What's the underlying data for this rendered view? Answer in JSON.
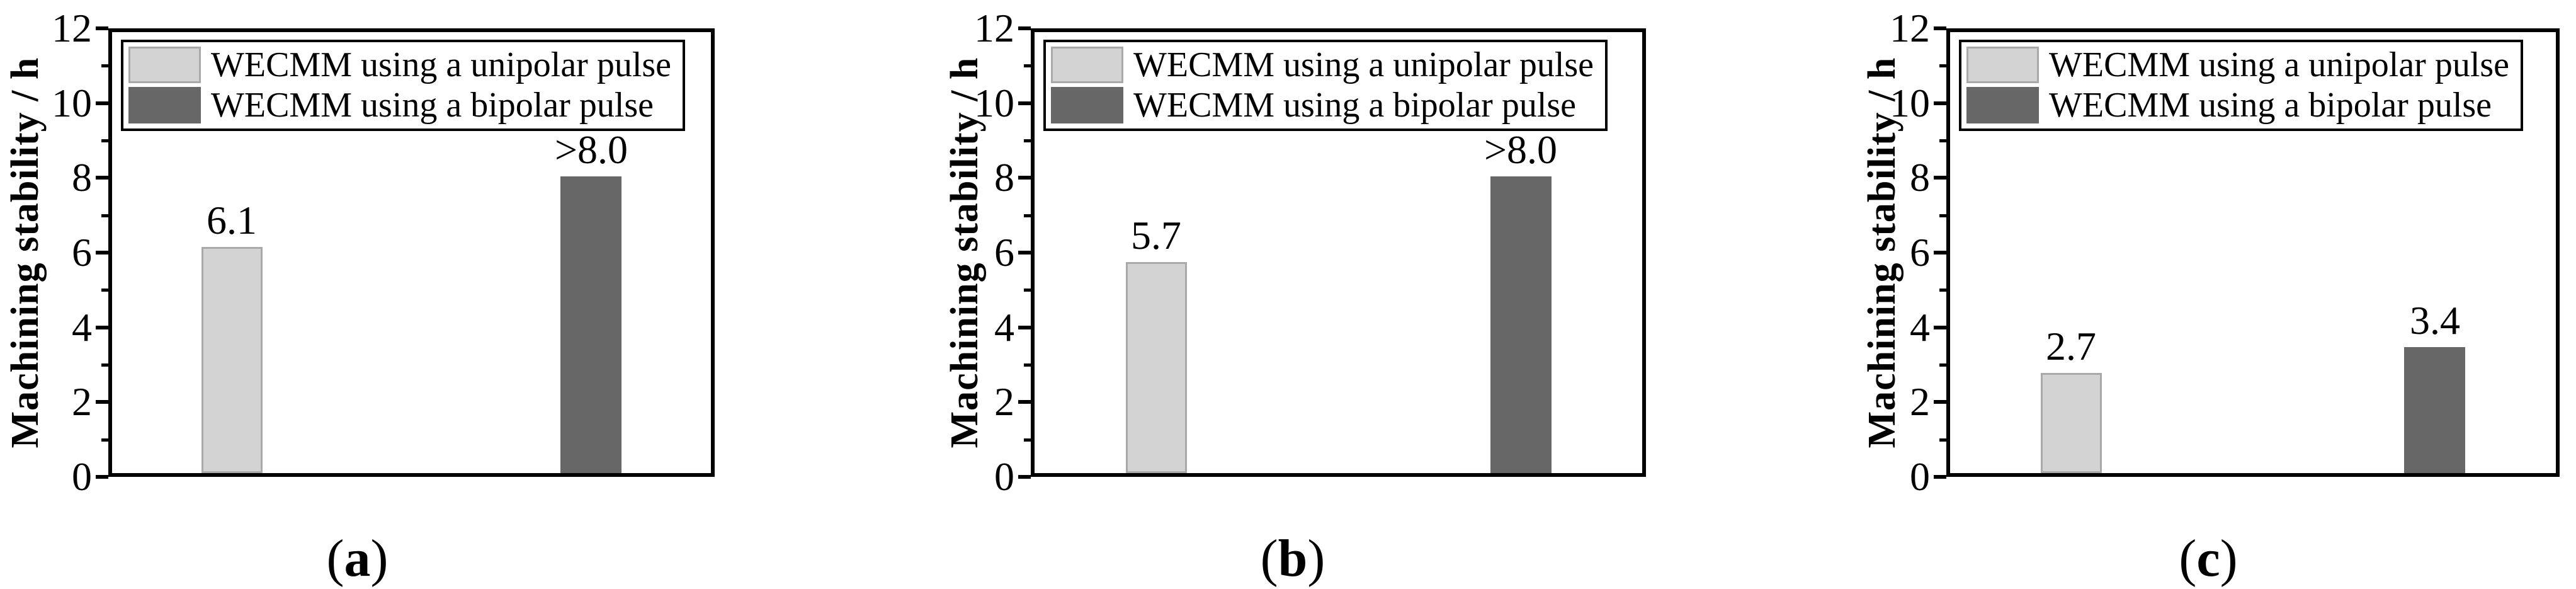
{
  "figure": {
    "background": "#ffffff",
    "axis_color": "#000000",
    "text_color": "#000000",
    "series_styles": {
      "unipolar": {
        "fill": "#d3d3d3",
        "edge": "#a9a9a9"
      },
      "bipolar": {
        "fill": "#676767",
        "edge": "#676767"
      }
    },
    "legend": {
      "position": "top-left",
      "border": true,
      "entries": [
        {
          "series": "unipolar",
          "label": "WECMM using a unipolar pulse"
        },
        {
          "series": "bipolar",
          "label": "WECMM using a bipolar pulse"
        }
      ]
    }
  },
  "chart_data": [
    {
      "type": "bar",
      "panel": "a",
      "caption": "(a)",
      "caption_letter": "a",
      "title": "",
      "xlabel": "",
      "ylabel": "Machining stability / h",
      "ylim": [
        0,
        12
      ],
      "yticks_major": [
        0,
        2,
        4,
        6,
        8,
        10,
        12
      ],
      "yticks_minor": [
        1,
        3,
        5,
        7,
        9,
        11
      ],
      "grid": false,
      "legend_visible": true,
      "series": [
        {
          "series": "unipolar",
          "name": "WECMM using a unipolar pulse",
          "value": 6.1,
          "value_label": "6.1"
        },
        {
          "series": "bipolar",
          "name": "WECMM using a bipolar pulse",
          "value": 8.0,
          "value_label": ">8.0"
        }
      ]
    },
    {
      "type": "bar",
      "panel": "b",
      "caption": "(b)",
      "caption_letter": "b",
      "title": "",
      "xlabel": "",
      "ylabel": "Machining stability / h",
      "ylim": [
        0,
        12
      ],
      "yticks_major": [
        0,
        2,
        4,
        6,
        8,
        10,
        12
      ],
      "yticks_minor": [
        1,
        3,
        5,
        7,
        9,
        11
      ],
      "grid": false,
      "legend_visible": true,
      "series": [
        {
          "series": "unipolar",
          "name": "WECMM using a unipolar pulse",
          "value": 5.7,
          "value_label": "5.7"
        },
        {
          "series": "bipolar",
          "name": "WECMM using a bipolar pulse",
          "value": 8.0,
          "value_label": ">8.0"
        }
      ]
    },
    {
      "type": "bar",
      "panel": "c",
      "caption": "(c)",
      "caption_letter": "c",
      "title": "",
      "xlabel": "",
      "ylabel": "Machining stability / h",
      "ylim": [
        0,
        12
      ],
      "yticks_major": [
        0,
        2,
        4,
        6,
        8,
        10,
        12
      ],
      "yticks_minor": [
        1,
        3,
        5,
        7,
        9,
        11
      ],
      "grid": false,
      "legend_visible": true,
      "series": [
        {
          "series": "unipolar",
          "name": "WECMM using a unipolar pulse",
          "value": 2.7,
          "value_label": "2.7"
        },
        {
          "series": "bipolar",
          "name": "WECMM using a bipolar pulse",
          "value": 3.4,
          "value_label": "3.4"
        }
      ]
    }
  ]
}
